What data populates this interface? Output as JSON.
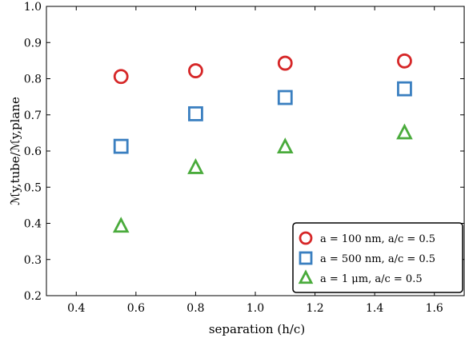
{
  "chart_data": {
    "type": "scatter",
    "xlabel": "separation (h/c)",
    "ylabel": "ℳy,tube/ℳy,plane",
    "xlim": [
      0.3,
      1.7
    ],
    "ylim": [
      0.2,
      1.0
    ],
    "xticks": [
      "0.4",
      "0.6",
      "0.8",
      "1.0",
      "1.2",
      "1.4",
      "1.6"
    ],
    "yticks": [
      "0.2",
      "0.3",
      "0.4",
      "0.5",
      "0.6",
      "0.7",
      "0.8",
      "0.9",
      "1.0"
    ],
    "grid": false,
    "legend_position": "bottom-right",
    "series": [
      {
        "name": "a = 100 nm, a/c = 0.5",
        "marker": "circle",
        "color": "#d62728",
        "x": [
          0.55,
          0.8,
          1.1,
          1.5
        ],
        "y": [
          0.806,
          0.822,
          0.843,
          0.849
        ]
      },
      {
        "name": "a = 500 nm, a/c = 0.5",
        "marker": "square",
        "color": "#3a7fc0",
        "x": [
          0.55,
          0.8,
          1.1,
          1.5
        ],
        "y": [
          0.613,
          0.703,
          0.748,
          0.772
        ]
      },
      {
        "name": "a = 1 μm, a/c = 0.5",
        "marker": "triangle",
        "color": "#4aab3c",
        "x": [
          0.55,
          0.8,
          1.1,
          1.5
        ],
        "y": [
          0.392,
          0.554,
          0.611,
          0.65
        ]
      }
    ]
  }
}
